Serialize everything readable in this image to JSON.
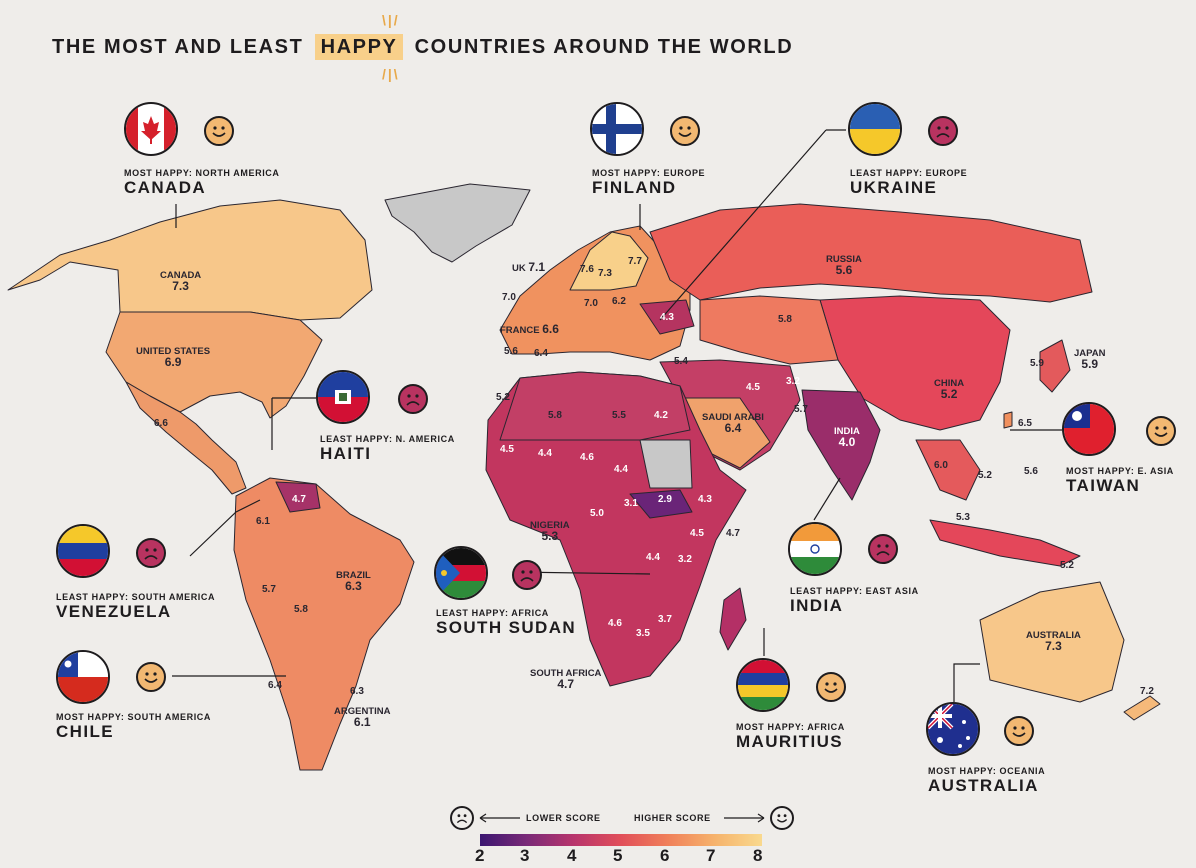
{
  "title": {
    "pre": "THE MOST AND LEAST",
    "highlight": "HAPPY",
    "post": "COUNTRIES AROUND THE WORLD"
  },
  "colors": {
    "most_happy": "#f8d08a",
    "least_happy": "#4a1e6e",
    "mid": "#e6525a",
    "no_data": "#c8c8c8",
    "background": "#efedea"
  },
  "map_labels": [
    {
      "name": "CANADA",
      "value": "7.3"
    },
    {
      "name": "UNITED STATES",
      "value": "6.9"
    },
    {
      "name": "RUSSIA",
      "value": "5.6"
    },
    {
      "name": "CHINA",
      "value": "5.2"
    },
    {
      "name": "INDIA",
      "value": "4.0"
    },
    {
      "name": "BRAZIL",
      "value": "6.3"
    },
    {
      "name": "AUSTRALIA",
      "value": "7.3"
    },
    {
      "name": "SAUDI ARABI",
      "value": "6.4"
    },
    {
      "name": "NIGERIA",
      "value": "5.3"
    },
    {
      "name": "SOUTH AFRICA",
      "value": "4.7"
    },
    {
      "name": "ARGENTINA",
      "value": "6.1"
    },
    {
      "name": "JAPAN",
      "value": "5.9"
    },
    {
      "name": "FRANCE",
      "value": "6.6"
    },
    {
      "name": "UK",
      "value": "7.1"
    }
  ],
  "map_scores": [
    "7.6",
    "7.3",
    "7.7",
    "7.0",
    "7.0",
    "6.2",
    "4.3",
    "5.6",
    "6.4",
    "5.4",
    "4.5",
    "3.2",
    "5.8",
    "5.7",
    "5.9",
    "6.6",
    "5.2",
    "5.8",
    "5.5",
    "4.2",
    "4.5",
    "4.4",
    "4.6",
    "4.4",
    "5.0",
    "3.1",
    "2.9",
    "4.3",
    "4.5",
    "4.7",
    "4.4",
    "3.2",
    "4.6",
    "3.5",
    "3.7",
    "4.7",
    "6.1",
    "5.7",
    "5.8",
    "6.4",
    "6.3",
    "6.0",
    "5.2",
    "5.6",
    "5.3",
    "5.2",
    "6.5",
    "7.2"
  ],
  "callouts": [
    {
      "caption": "MOST HAPPY: NORTH AMERICA",
      "country": "CANADA",
      "mood": "happy"
    },
    {
      "caption": "MOST HAPPY: EUROPE",
      "country": "FINLAND",
      "mood": "happy"
    },
    {
      "caption": "LEAST HAPPY: EUROPE",
      "country": "UKRAINE",
      "mood": "sad"
    },
    {
      "caption": "LEAST HAPPY: N. AMERICA",
      "country": "HAITI",
      "mood": "sad"
    },
    {
      "caption": "MOST HAPPY: E. ASIA",
      "country": "TAIWAN",
      "mood": "happy"
    },
    {
      "caption": "LEAST HAPPY: SOUTH AMERICA",
      "country": "VENEZUELA",
      "mood": "sad"
    },
    {
      "caption": "LEAST HAPPY: AFRICA",
      "country": "SOUTH SUDAN",
      "mood": "sad"
    },
    {
      "caption": "LEAST HAPPY: EAST ASIA",
      "country": "INDIA",
      "mood": "sad"
    },
    {
      "caption": "MOST HAPPY: SOUTH AMERICA",
      "country": "CHILE",
      "mood": "happy"
    },
    {
      "caption": "MOST HAPPY: AFRICA",
      "country": "MAURITIUS",
      "mood": "happy"
    },
    {
      "caption": "MOST HAPPY: OCEANIA",
      "country": "AUSTRALIA",
      "mood": "happy"
    }
  ],
  "legend": {
    "lower": "LOWER SCORE",
    "higher": "HIGHER SCORE",
    "ticks": [
      "2",
      "3",
      "4",
      "5",
      "6",
      "7",
      "8"
    ],
    "gradient": [
      "#3b1670",
      "#7a2a78",
      "#b8356c",
      "#e14f5a",
      "#f0805a",
      "#f6b36c",
      "#f9d98e"
    ]
  }
}
